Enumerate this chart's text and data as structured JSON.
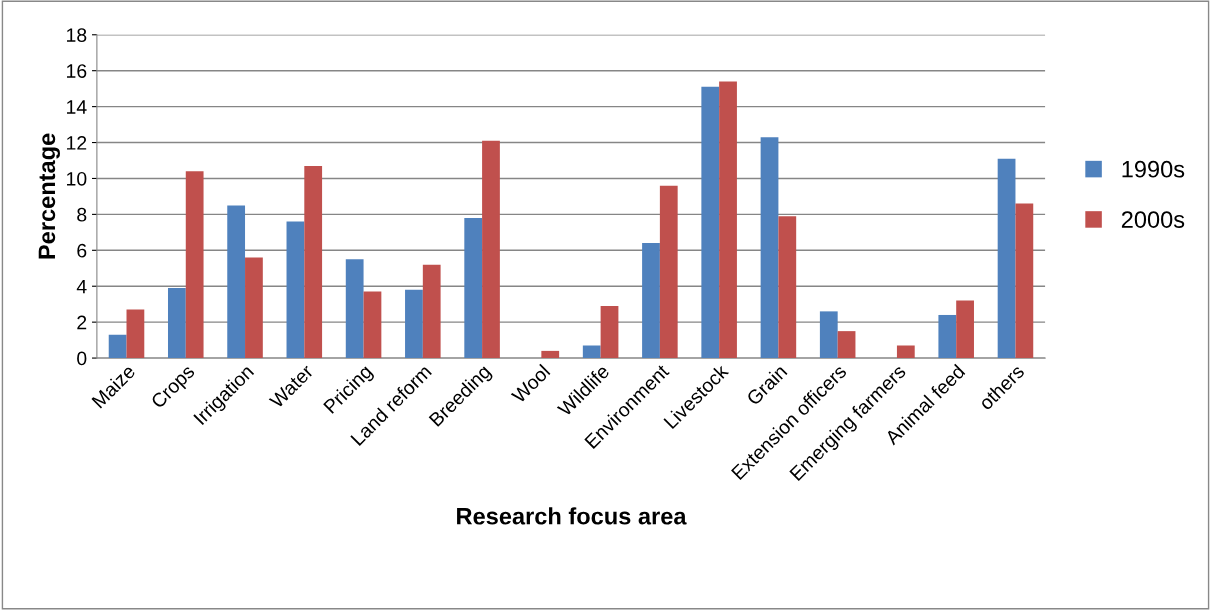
{
  "chart_data": {
    "type": "bar",
    "xlabel": "Research focus area",
    "ylabel": "Percentage",
    "categories": [
      "Maize",
      "Crops",
      "Irrigation",
      "Water",
      "Pricing",
      "Land reform",
      "Breeding",
      "Wool",
      "Wildlife",
      "Environment",
      "Livestock",
      "Grain",
      "Extension officers",
      "Emerging farmers",
      "Animal feed",
      "others"
    ],
    "series": [
      {
        "name": "1990s",
        "color": "#4f81bd",
        "values": [
          1.3,
          3.9,
          8.5,
          7.6,
          5.5,
          3.8,
          7.8,
          0,
          0.7,
          6.4,
          15.1,
          12.3,
          2.6,
          0,
          2.4,
          11.1
        ]
      },
      {
        "name": "2000s",
        "color": "#c0504d",
        "values": [
          2.7,
          10.4,
          5.6,
          10.7,
          3.7,
          5.2,
          12.1,
          0.4,
          2.9,
          9.6,
          15.4,
          7.9,
          1.5,
          0.7,
          3.2,
          8.6
        ]
      }
    ],
    "ylim": [
      0,
      18
    ],
    "yticks": [
      0,
      2,
      4,
      6,
      8,
      10,
      12,
      14,
      16,
      18
    ],
    "grid": "y",
    "legend": "right"
  }
}
